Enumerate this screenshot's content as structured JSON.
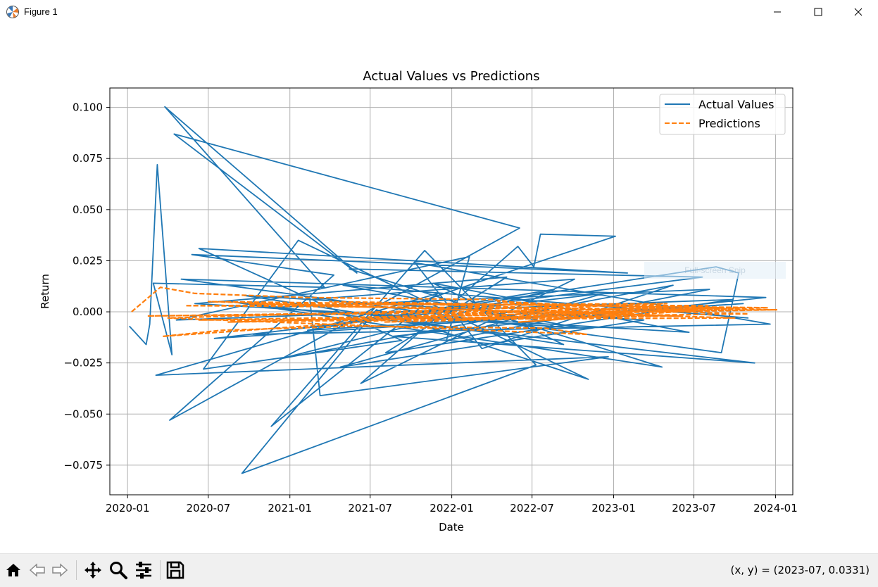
{
  "window": {
    "title": "Figure 1",
    "icon": "matplotlib-figure-icon",
    "controls": [
      "minimize-icon",
      "maximize-icon",
      "close-icon"
    ]
  },
  "toolbar": {
    "buttons": [
      "home-icon",
      "back-icon",
      "forward-icon",
      "pan-icon",
      "zoom-icon",
      "configure-subplots-icon",
      "save-icon"
    ],
    "coordinates": "(x, y) = (2023-07, 0.0331)"
  },
  "overlay": {
    "snip_label": "Full-screen Snip"
  },
  "colors": {
    "actual": "#1f77b4",
    "predictions": "#ff7f0e",
    "grid": "#b0b0b0"
  },
  "chart_data": {
    "type": "line",
    "title": "Actual Values vs Predictions",
    "xlabel": "Date",
    "ylabel": "Return",
    "x_ticks": [
      "2020-01",
      "2020-07",
      "2021-01",
      "2021-07",
      "2022-01",
      "2022-07",
      "2023-01",
      "2023-07",
      "2024-01"
    ],
    "y_ticks": [
      -0.075,
      -0.05,
      -0.025,
      0.0,
      0.025,
      0.05,
      0.075,
      0.1
    ],
    "y_tick_labels": [
      "−0.075",
      "−0.050",
      "−0.025",
      "0.000",
      "0.025",
      "0.050",
      "0.075",
      "0.100"
    ],
    "xlim": [
      "2019-11-22",
      "2024-02-09"
    ],
    "ylim": [
      -0.0895,
      0.1095
    ],
    "grid": true,
    "legend": {
      "position": "upper right",
      "entries": [
        "Actual Values",
        "Predictions"
      ]
    },
    "series": [
      {
        "name": "Actual Values",
        "style": "solid",
        "points": [
          [
            "2020-01-05",
            -0.007
          ],
          [
            "2020-02-12",
            -0.016
          ],
          [
            "2020-02-20",
            -0.006
          ],
          [
            "2020-03-08",
            0.072
          ],
          [
            "2020-04-10",
            -0.021
          ],
          [
            "2020-02-28",
            0.014
          ],
          [
            "2021-03-20",
            0.012
          ],
          [
            "2020-03-25",
            0.1003
          ],
          [
            "2021-06-01",
            0.019
          ],
          [
            "2020-04-15",
            0.087
          ],
          [
            "2022-06-03",
            0.041
          ],
          [
            "2020-04-05",
            -0.053
          ],
          [
            "2021-04-10",
            0.018
          ],
          [
            "2020-05-25",
            0.028
          ],
          [
            "2023-02-01",
            0.019
          ],
          [
            "2020-06-10",
            0.031
          ],
          [
            "2021-09-10",
            -0.014
          ],
          [
            "2020-06-20",
            -0.028
          ],
          [
            "2021-01-20",
            0.035
          ],
          [
            "2022-11-05",
            -0.033
          ],
          [
            "2021-07-15",
            0.001
          ],
          [
            "2020-09-15",
            -0.079
          ],
          [
            "2022-07-10",
            -0.026
          ],
          [
            "2021-11-01",
            0.03
          ],
          [
            "2020-11-20",
            -0.056
          ],
          [
            "2021-12-01",
            0.009
          ],
          [
            "2020-03-05",
            -0.031
          ],
          [
            "2022-12-20",
            -0.022
          ],
          [
            "2021-03-10",
            -0.041
          ],
          [
            "2021-02-15",
            0.006
          ],
          [
            "2022-10-05",
            0.016
          ],
          [
            "2021-06-10",
            -0.035
          ],
          [
            "2022-05-30",
            0.032
          ],
          [
            "2022-07-05",
            0.022
          ],
          [
            "2022-07-20",
            0.038
          ],
          [
            "2023-01-05",
            0.037
          ],
          [
            "2021-06-05",
            -0.005
          ],
          [
            "2023-08-20",
            0.022
          ],
          [
            "2023-10-10",
            0.019
          ],
          [
            "2023-09-01",
            -0.02
          ],
          [
            "2020-05-01",
            0.016
          ],
          [
            "2023-12-10",
            0.007
          ],
          [
            "2021-08-20",
            -0.012
          ],
          [
            "2023-11-15",
            -0.025
          ],
          [
            "2020-08-20",
            0.005
          ],
          [
            "2023-04-20",
            -0.027
          ],
          [
            "2021-05-15",
            0.021
          ],
          [
            "2023-07-20",
            0.017
          ],
          [
            "2020-10-10",
            -0.011
          ],
          [
            "2023-12-20",
            -0.006
          ],
          [
            "2021-10-10",
            0.024
          ],
          [
            "2022-03-10",
            -0.018
          ],
          [
            "2023-05-15",
            0.013
          ],
          [
            "2020-12-10",
            -0.023
          ],
          [
            "2022-08-20",
            0.011
          ],
          [
            "2021-02-10",
            -0.009
          ],
          [
            "2023-10-20",
            0.004
          ],
          [
            "2020-07-15",
            -0.013
          ],
          [
            "2022-12-10",
            0.009
          ],
          [
            "2021-04-25",
            -0.027
          ],
          [
            "2023-03-10",
            -0.004
          ],
          [
            "2020-09-20",
            0.008
          ],
          [
            "2022-09-10",
            -0.016
          ],
          [
            "2021-11-20",
            0.014
          ],
          [
            "2023-06-20",
            -0.01
          ],
          [
            "2020-06-01",
            0.004
          ],
          [
            "2022-05-05",
            0.017
          ],
          [
            "2021-08-05",
            -0.02
          ],
          [
            "2023-09-25",
            0.006
          ],
          [
            "2020-04-20",
            -0.004
          ],
          [
            "2022-02-10",
            0.027
          ],
          [
            "2021-12-20",
            -0.014
          ],
          [
            "2023-08-05",
            0.011
          ],
          [
            "2020-11-05",
            0.002
          ],
          [
            "2022-10-20",
            -0.008
          ],
          [
            "2021-05-01",
            0.013
          ],
          [
            "2023-11-01",
            -0.003
          ]
        ]
      },
      {
        "name": "Predictions",
        "style": "dashed",
        "points": [
          [
            "2020-01-10",
            0.0
          ],
          [
            "2020-03-15",
            0.012
          ],
          [
            "2020-06-01",
            0.009
          ],
          [
            "2021-02-01",
            0.007
          ],
          [
            "2022-04-01",
            0.006
          ],
          [
            "2022-09-01",
            0.002
          ],
          [
            "2020-03-20",
            -0.012
          ],
          [
            "2020-08-01",
            -0.009
          ],
          [
            "2021-06-01",
            -0.007
          ],
          [
            "2022-08-01",
            -0.008
          ],
          [
            "2022-11-01",
            -0.011
          ],
          [
            "2020-04-01",
            -0.003
          ],
          [
            "2023-05-01",
            0.004
          ],
          [
            "2020-05-10",
            0.003
          ],
          [
            "2024-01-01",
            0.001
          ],
          [
            "2020-06-10",
            -0.004
          ],
          [
            "2023-10-01",
            -0.003
          ],
          [
            "2020-07-01",
            0.005
          ],
          [
            "2023-12-15",
            0.002
          ],
          [
            "2020-08-15",
            -0.005
          ],
          [
            "2023-06-01",
            -0.002
          ],
          [
            "2020-10-01",
            0.004
          ],
          [
            "2023-08-01",
            0.003
          ],
          [
            "2021-01-01",
            -0.004
          ],
          [
            "2023-11-01",
            -0.001
          ],
          [
            "2021-04-01",
            0.005
          ],
          [
            "2023-09-01",
            0.002
          ],
          [
            "2021-08-01",
            -0.005
          ],
          [
            "2023-04-01",
            -0.002
          ],
          [
            "2021-11-01",
            0.004
          ],
          [
            "2022-12-01",
            0.003
          ],
          [
            "2022-01-15",
            -0.004
          ],
          [
            "2023-07-01",
            0.001
          ],
          [
            "2022-04-15",
            0.005
          ],
          [
            "2023-02-15",
            -0.001
          ],
          [
            "2022-06-01",
            -0.005
          ],
          [
            "2023-10-15",
            0.002
          ],
          [
            "2020-02-15",
            -0.002
          ],
          [
            "2024-01-05",
            0.001
          ]
        ]
      }
    ]
  }
}
